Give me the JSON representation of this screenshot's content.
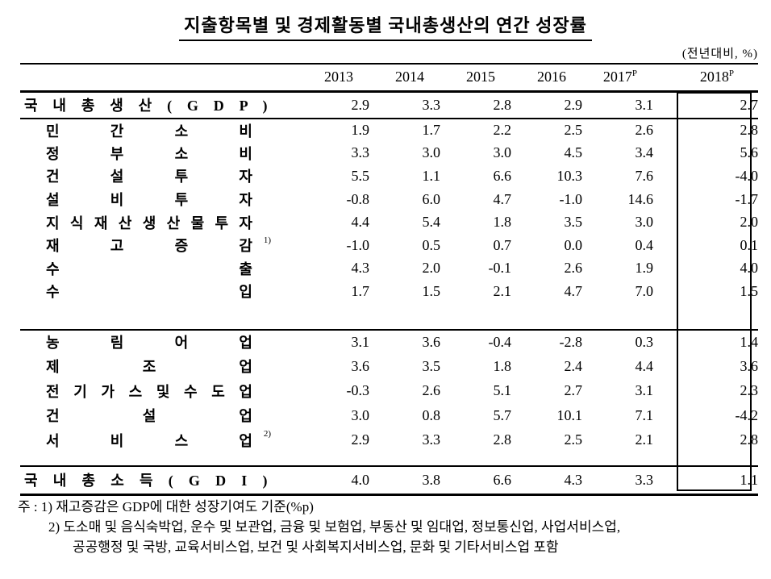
{
  "title": "지출항목별 및 경제활동별 국내총생산의 연간 성장률",
  "unit_note": "(전년대비, %)",
  "columns": [
    {
      "year": "2013",
      "sup": ""
    },
    {
      "year": "2014",
      "sup": ""
    },
    {
      "year": "2015",
      "sup": ""
    },
    {
      "year": "2016",
      "sup": ""
    },
    {
      "year": "2017",
      "sup": "P"
    },
    {
      "year": "2018",
      "sup": "P"
    }
  ],
  "rows": [
    {
      "label": "국 내 총 생 산 ( G D P )",
      "sup": "",
      "values": [
        "2.9",
        "3.3",
        "2.8",
        "2.9",
        "3.1",
        "2.7"
      ]
    },
    {
      "label": "민 간 소 비",
      "sup": "",
      "values": [
        "1.9",
        "1.7",
        "2.2",
        "2.5",
        "2.6",
        "2.8"
      ]
    },
    {
      "label": "정 부 소 비",
      "sup": "",
      "values": [
        "3.3",
        "3.0",
        "3.0",
        "4.5",
        "3.4",
        "5.6"
      ]
    },
    {
      "label": "건 설 투 자",
      "sup": "",
      "values": [
        "5.5",
        "1.1",
        "6.6",
        "10.3",
        "7.6",
        "-4.0"
      ]
    },
    {
      "label": "설 비 투 자",
      "sup": "",
      "values": [
        "-0.8",
        "6.0",
        "4.7",
        "-1.0",
        "14.6",
        "-1.7"
      ]
    },
    {
      "label": "지 식 재 산 생 산 물 투 자",
      "sup": "",
      "values": [
        "4.4",
        "5.4",
        "1.8",
        "3.5",
        "3.0",
        "2.0"
      ]
    },
    {
      "label": "재 고 증 감",
      "sup": "1)",
      "values": [
        "-1.0",
        "0.5",
        "0.7",
        "0.0",
        "0.4",
        "0.1"
      ]
    },
    {
      "label": "수 출",
      "sup": "",
      "values": [
        "4.3",
        "2.0",
        "-0.1",
        "2.6",
        "1.9",
        "4.0"
      ]
    },
    {
      "label": "수 입",
      "sup": "",
      "values": [
        "1.7",
        "1.5",
        "2.1",
        "4.7",
        "7.0",
        "1.5"
      ]
    },
    {
      "label": "농 림 어 업",
      "sup": "",
      "values": [
        "3.1",
        "3.6",
        "-0.4",
        "-2.8",
        "0.3",
        "1.4"
      ]
    },
    {
      "label": "제 조 업",
      "sup": "",
      "values": [
        "3.6",
        "3.5",
        "1.8",
        "2.4",
        "4.4",
        "3.6"
      ]
    },
    {
      "label": "전 기 가 스 및 수 도 업",
      "sup": "",
      "values": [
        "-0.3",
        "2.6",
        "5.1",
        "2.7",
        "3.1",
        "2.3"
      ]
    },
    {
      "label": "건 설 업",
      "sup": "",
      "values": [
        "3.0",
        "0.8",
        "5.7",
        "10.1",
        "7.1",
        "-4.2"
      ]
    },
    {
      "label": "서 비 스 업",
      "sup": "2)",
      "values": [
        "2.9",
        "3.3",
        "2.8",
        "2.5",
        "2.1",
        "2.8"
      ]
    },
    {
      "label": "국 내 총 소 득 ( G D I )",
      "sup": "",
      "values": [
        "4.0",
        "3.8",
        "6.6",
        "4.3",
        "3.3",
        "1.1"
      ]
    }
  ],
  "footnotes": {
    "line1": "주 : 1) 재고증감은 GDP에 대한 성장기여도 기준(%p)",
    "line2": "2) 도소매 및 음식숙박업, 운수 및 보관업, 금융 및 보험업, 부동산 및 임대업, 정보통신업, 사업서비스업,",
    "line3": "공공행정 및 국방, 교육서비스업, 보건 및 사회복지서비스업, 문화 및 기타서비스업 포함"
  }
}
